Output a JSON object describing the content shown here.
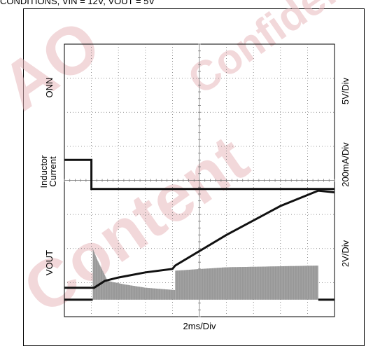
{
  "top_caption": "  CONDITIONS, VIN = 12V, VOUT = 5V",
  "watermark": {
    "lines": [
      "AO",
      "Confidential",
      "Content"
    ],
    "color": "#e8b9bd"
  },
  "chart_data": {
    "type": "line",
    "title": "",
    "xlabel": "2ms/Div",
    "x_divisions": 10,
    "y_divisions": 8,
    "grid": true,
    "channels": [
      {
        "label": "ONN",
        "scale": "5V/Div"
      },
      {
        "label_lines": [
          "Inductor",
          "Current"
        ],
        "scale": "200mA/Div"
      },
      {
        "label": "VOUT",
        "scale": "2V/Div"
      }
    ],
    "series": [
      {
        "channel": "ONN",
        "x": [
          0,
          1.0,
          1.0,
          10
        ],
        "y": [
          4.6,
          4.6,
          3.75,
          3.75
        ]
      },
      {
        "channel": "Inductor Current",
        "baseline": 0.5,
        "segments": [
          {
            "x_start": 0,
            "x_end": 1.05,
            "kind": "flat"
          },
          {
            "x_start": 1.05,
            "x_end": 4.1,
            "kind": "burst",
            "x": [
              1.05,
              1.2,
              1.6,
              2.2,
              3.0,
              4.1
            ],
            "y_top": [
              2.0,
              1.7,
              1.05,
              0.95,
              0.85,
              0.78
            ]
          },
          {
            "x_start": 4.1,
            "x_end": 9.4,
            "kind": "burst",
            "x": [
              4.1,
              6.0,
              9.4
            ],
            "y_top": [
              1.35,
              1.45,
              1.5
            ]
          },
          {
            "x_start": 9.4,
            "x_end": 10,
            "kind": "flat"
          }
        ]
      },
      {
        "channel": "VOUT",
        "x": [
          0,
          1.1,
          1.3,
          1.5,
          2.0,
          3.0,
          4.0,
          4.1,
          6.0,
          8.0,
          9.4,
          10
        ],
        "y": [
          0.85,
          0.85,
          0.95,
          1.05,
          1.15,
          1.3,
          1.4,
          1.5,
          2.4,
          3.25,
          3.7,
          3.65
        ]
      }
    ]
  }
}
